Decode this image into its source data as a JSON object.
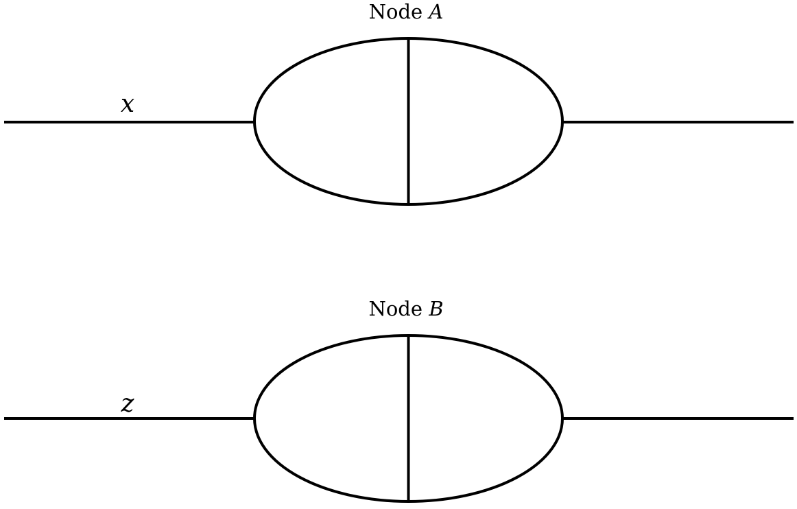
{
  "diagram": {
    "colors": {
      "stroke": "#000000",
      "background": "#ffffff"
    },
    "nodes": [
      {
        "id": "A",
        "label_prefix": "Node",
        "label_var": "A",
        "edge_label": "x"
      },
      {
        "id": "B",
        "label_prefix": "Node",
        "label_var": "B",
        "edge_label": "z"
      }
    ]
  }
}
